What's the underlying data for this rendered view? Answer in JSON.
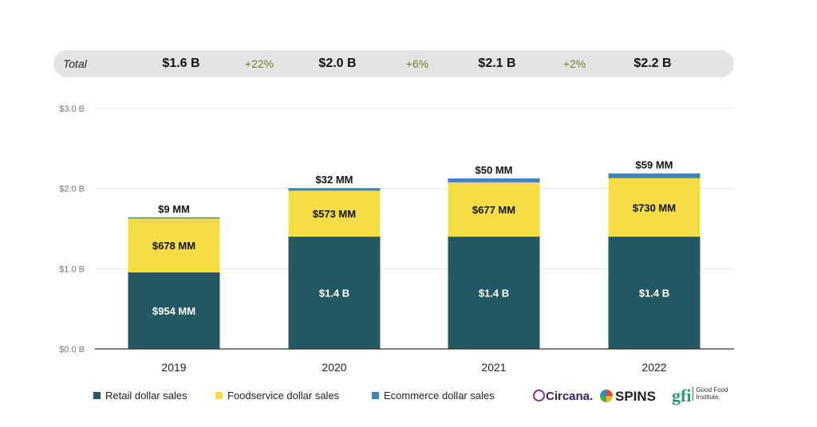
{
  "totals": {
    "label": "Total",
    "values": [
      "$1.6 B",
      "$2.0 B",
      "$2.1 B",
      "$2.2 B"
    ],
    "growth": [
      "+22%",
      "+6%",
      "+2%"
    ]
  },
  "colors": {
    "retail": "#245862",
    "foodservice": "#f4dc45",
    "ecommerce": "#3f86b8",
    "totals_bg": "#e4e4e4",
    "growth_text": "#6b7f2a"
  },
  "chart_data": {
    "type": "bar",
    "stacked": true,
    "categories": [
      "2019",
      "2020",
      "2021",
      "2022"
    ],
    "series": [
      {
        "name": "Retail dollar sales",
        "values": [
          0.954,
          1.4,
          1.4,
          1.4
        ],
        "labels": [
          "$954 MM",
          "$1.4 B",
          "$1.4 B",
          "$1.4 B"
        ]
      },
      {
        "name": "Foodservice dollar sales",
        "values": [
          0.678,
          0.573,
          0.677,
          0.73
        ],
        "labels": [
          "$678 MM",
          "$573 MM",
          "$677 MM",
          "$730 MM"
        ]
      },
      {
        "name": "Ecommerce dollar sales",
        "values": [
          0.009,
          0.032,
          0.05,
          0.059
        ],
        "labels": [
          "$9 MM",
          "$32 MM",
          "$50 MM",
          "$59 MM"
        ]
      }
    ],
    "y_ticks": [
      0,
      1,
      2,
      3
    ],
    "y_tick_labels": [
      "$0.0 B",
      "$1.0 B",
      "$2.0 B",
      "$3.0 B"
    ],
    "ylim": [
      0,
      3
    ],
    "grid": true,
    "legend_position": "bottom-left"
  },
  "legend": {
    "retail": "Retail dollar sales",
    "foodservice": "Foodservice dollar sales",
    "ecommerce": "Ecommerce dollar sales"
  },
  "logos": {
    "circana": "Circana.",
    "spins": "SPINS",
    "gfi_mark": "gfi",
    "gfi_name": "Good Food Institute."
  }
}
